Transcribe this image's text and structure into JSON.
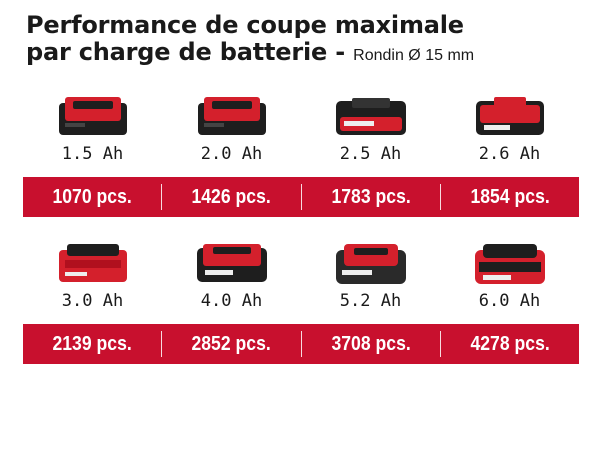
{
  "title": {
    "line1": "Performance de coupe maximale",
    "line2": "par charge de batterie -",
    "sub": "Rondin Ø 15 mm"
  },
  "batteries": [
    {
      "capacity": "1.5 Ah",
      "cuts": "1070 pcs.",
      "icon": "battery-pack-icon"
    },
    {
      "capacity": "2.0 Ah",
      "cuts": "1426 pcs.",
      "icon": "battery-pack-icon"
    },
    {
      "capacity": "2.5 Ah",
      "cuts": "1783 pcs.",
      "icon": "battery-pack-icon"
    },
    {
      "capacity": "2.6 Ah",
      "cuts": "1854 pcs.",
      "icon": "battery-pack-icon"
    },
    {
      "capacity": "3.0 Ah",
      "cuts": "2139 pcs.",
      "icon": "battery-pack-icon"
    },
    {
      "capacity": "4.0 Ah",
      "cuts": "2852 pcs.",
      "icon": "battery-pack-icon"
    },
    {
      "capacity": "5.2 Ah",
      "cuts": "3708 pcs.",
      "icon": "battery-pack-icon"
    },
    {
      "capacity": "6.0 Ah",
      "cuts": "4278 pcs.",
      "icon": "battery-pack-icon"
    }
  ],
  "colors": {
    "accent": "#c8102e",
    "battery_red": "#d4202c",
    "battery_black": "#1e1e1e"
  }
}
